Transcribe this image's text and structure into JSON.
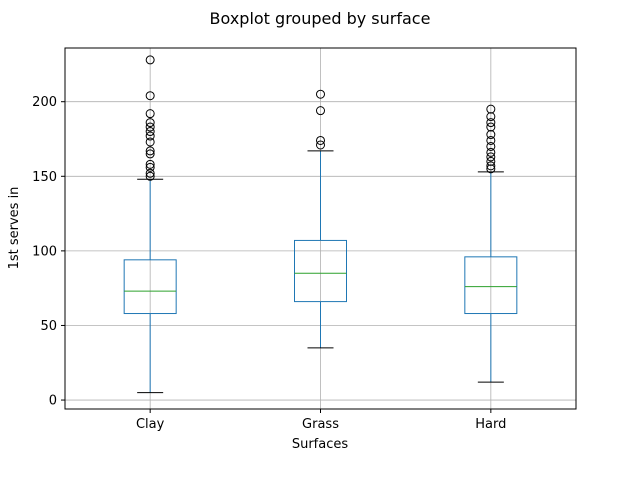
{
  "chart_data": {
    "type": "boxplot",
    "title": "Boxplot grouped by surface",
    "xlabel": "Surfaces",
    "ylabel": "1st serves in",
    "ylim": [
      -6,
      236
    ],
    "yticks": [
      0,
      50,
      100,
      150,
      200
    ],
    "grid": true,
    "categories": [
      "Clay",
      "Grass",
      "Hard"
    ],
    "boxes": [
      {
        "name": "Clay",
        "whisker_low": 5,
        "q1": 58,
        "median": 73,
        "q3": 94,
        "whisker_high": 148,
        "outliers": [
          150,
          152,
          156,
          158,
          165,
          167,
          173,
          177,
          180,
          183,
          186,
          192,
          204,
          228
        ]
      },
      {
        "name": "Grass",
        "whisker_low": 35,
        "q1": 66,
        "median": 85,
        "q3": 107,
        "whisker_high": 167,
        "outliers": [
          171,
          174,
          194,
          205
        ]
      },
      {
        "name": "Hard",
        "whisker_low": 12,
        "q1": 58,
        "median": 76,
        "q3": 96,
        "whisker_high": 153,
        "outliers": [
          155,
          157,
          160,
          163,
          166,
          170,
          174,
          178,
          183,
          186,
          190,
          195
        ]
      }
    ],
    "colors": {
      "box": "#1f77b4",
      "median": "#2ca02c",
      "cap": "#000000",
      "grid": "#b0b0b0",
      "outlier_edge": "#000000"
    }
  }
}
